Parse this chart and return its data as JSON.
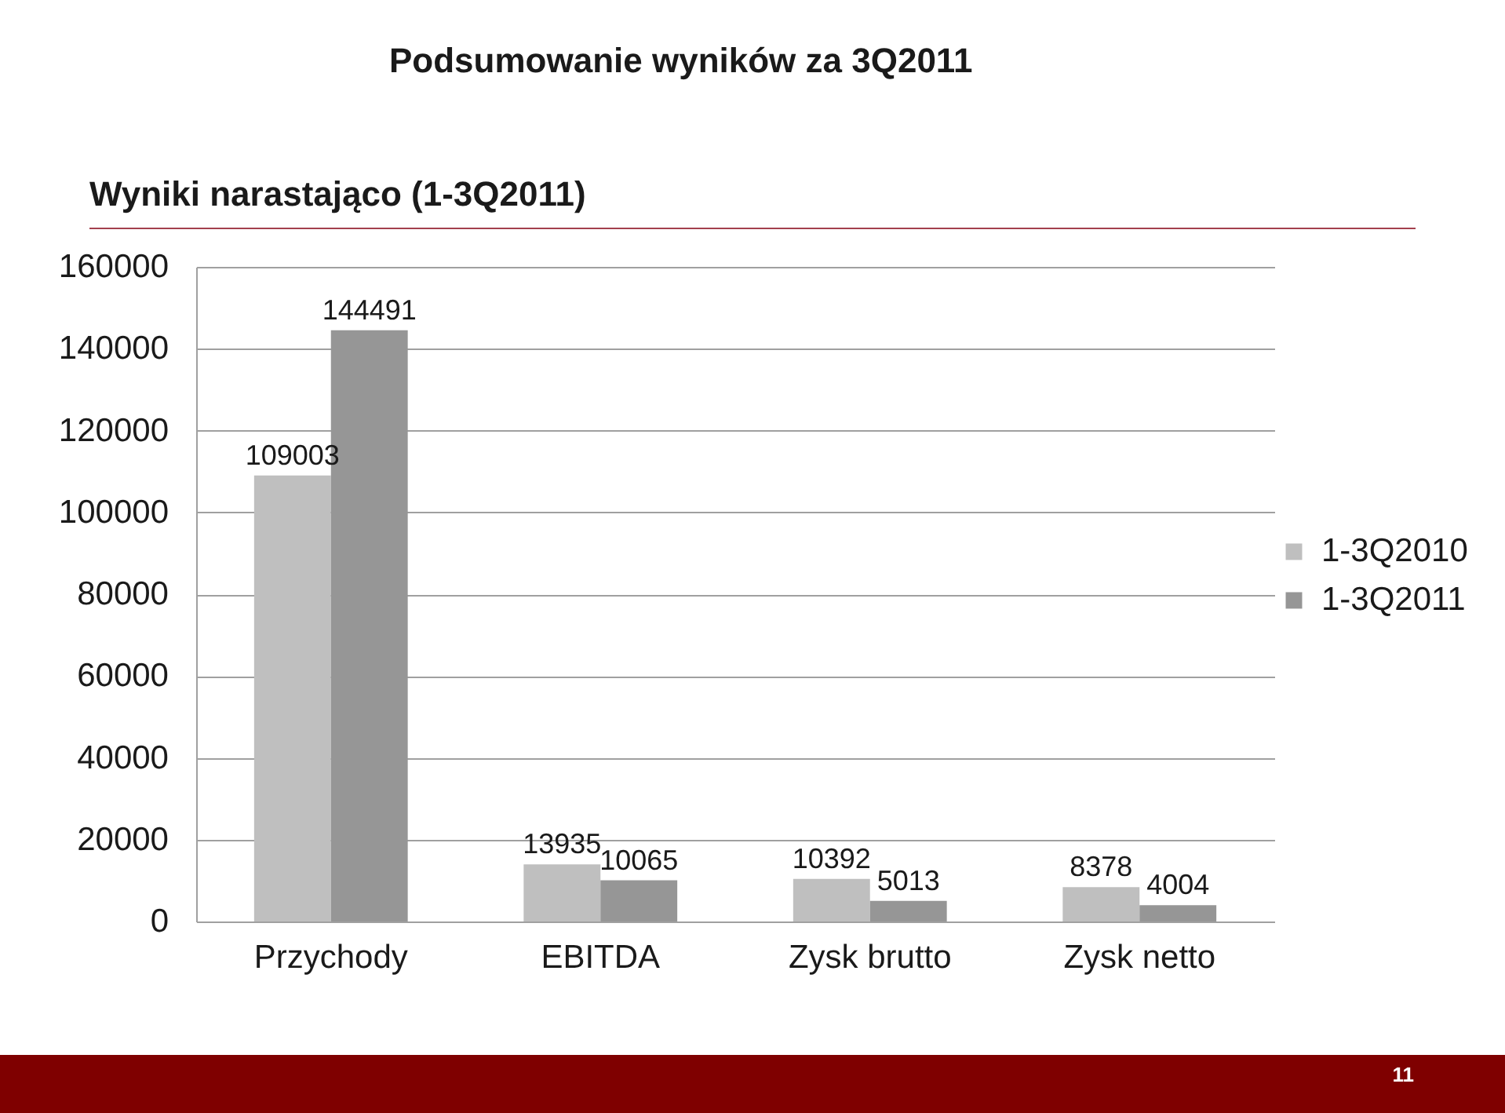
{
  "chart_data": {
    "type": "bar",
    "title": "Podsumowanie wyników za 3Q2011",
    "subtitle": "Wyniki narastająco (1-3Q2011)",
    "annotations": [
      "11"
    ],
    "categories": [
      "Przychody",
      "EBITDA",
      "Zysk brutto",
      "Zysk netto"
    ],
    "series": [
      {
        "name": "1-3Q2010",
        "color": "#bfbfbf",
        "values": [
          109003,
          13935,
          10392,
          8378
        ]
      },
      {
        "name": "1-3Q2011",
        "color": "#969696",
        "values": [
          144491,
          10065,
          5013,
          4004
        ]
      }
    ],
    "ylim": [
      0,
      160000
    ],
    "yticks": [
      0,
      20000,
      40000,
      60000,
      80000,
      100000,
      120000,
      140000,
      160000
    ],
    "grid": "y",
    "legend": "right",
    "data_labels": true
  }
}
